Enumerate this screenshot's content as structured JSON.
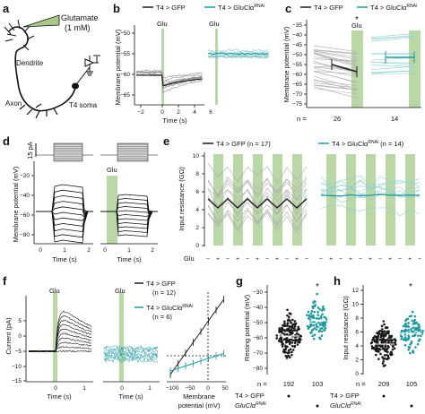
{
  "colors": {
    "control": "#1a1a1a",
    "rnai": "#1a9aa0",
    "green": "#b9d8a6",
    "grey": "#8c8c8c"
  },
  "panels": {
    "a": {
      "label": "a",
      "glutamate": "Glutamate",
      "conc": "(1 mM)",
      "dendrite": "Dendrite",
      "axon": "Axon",
      "soma": "T4 soma"
    },
    "b": {
      "label": "b",
      "ylabel": "Membrane potential (mV)",
      "xlabel": "Time (s)",
      "glu": "Glu",
      "legend_control": "T4 > GFP",
      "legend_rnai": "T4 > GluClα",
      "rnai_sup": "RNAi",
      "yticks": [
        "−50",
        "−55",
        "−60",
        "−65"
      ],
      "xticks": [
        "−2",
        "0",
        "2",
        "4",
        "6"
      ]
    },
    "c": {
      "label": "c",
      "ylabel": "Membrane potential (mV)",
      "glu": "Glu",
      "star": "*",
      "legend_control": "T4 > GFP",
      "legend_rnai": "T4 > GluClα",
      "rnai_sup": "RNAi",
      "yticks": [
        "−35",
        "−40",
        "−45",
        "−50",
        "−55",
        "−60",
        "−65",
        "−70",
        "−75"
      ],
      "n_label": "n =",
      "n_control": "26",
      "n_rnai": "14"
    },
    "d": {
      "label": "d",
      "scale": "15 pA",
      "ylabel": "Membrane potential (mV)",
      "xlabel1": "Time (s)",
      "xlabel2": "Time (s)",
      "glu": "Glu",
      "yticks": [
        "−20",
        "−40",
        "−60",
        "−80"
      ],
      "xticks": [
        "0",
        "1",
        "2"
      ]
    },
    "e": {
      "label": "e",
      "ylabel": "Input resistance (GΩ)",
      "glu": "Glu",
      "legend_control": "T4 > GFP (n = 17)",
      "legend_rnai_a": "T4 > GluClα",
      "legend_rnai_sup": "RNAi",
      "legend_rnai_b": " (n = 14)",
      "yticks": [
        "10",
        "8",
        "6",
        "4",
        "2",
        "0"
      ],
      "glu_marks": [
        "−",
        "+",
        "−",
        "+",
        "−",
        "+",
        "−",
        "+",
        "−",
        "+",
        "−"
      ]
    },
    "f": {
      "label": "f",
      "ylabel": "Current (pA)",
      "xlabel1": "Time (s)",
      "xlabel2": "Time (s)",
      "xlabel3a": "Membrane",
      "xlabel3b": "potential (mV)",
      "glu": "Glu",
      "legend_control": "T4 > GFP",
      "legend_control_n": "(n = 12)",
      "legend_rnai": "T4 > GluClα",
      "rnai_sup": "RNAi",
      "legend_rnai_n": "(n = 6)",
      "yticks": [
        "5",
        "0",
        "−5",
        "−10",
        "−15"
      ],
      "xticks_time": [
        "0",
        "1"
      ],
      "xticks_v": [
        "−100",
        "−50",
        "0",
        "50"
      ]
    },
    "g": {
      "label": "g",
      "ylabel": "Resting potential (mV)",
      "star": "*",
      "yticks": [
        "−30",
        "−40",
        "−50",
        "−60",
        "−70",
        "−80"
      ],
      "n_label": "n =",
      "n_control": "192",
      "n_rnai": "103"
    },
    "h": {
      "label": "h",
      "ylabel": "Input resistance (GΩ)",
      "star": "*",
      "yticks": [
        "12",
        "10",
        "8",
        "6",
        "4",
        "2",
        "0"
      ],
      "n_label": "n =",
      "n_control": "209",
      "n_rnai": "105"
    },
    "gh_table": {
      "row1": "T4 > GFP",
      "row2": "GluClα",
      "row2_sup": "RNAi",
      "dot": "●"
    }
  }
}
